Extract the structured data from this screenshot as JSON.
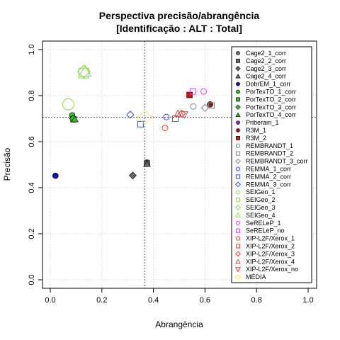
{
  "chart_data": {
    "type": "scatter",
    "title": "Perspectiva precisão/abrangência",
    "subtitle": "[Identificação : ALT : Total]",
    "xlabel": "Abrangência",
    "ylabel": "Precisão",
    "xlim": [
      0,
      1
    ],
    "ylim": [
      0,
      1
    ],
    "x_ticks": [
      "0.0",
      "0.2",
      "0.4",
      "0.6",
      "0.8",
      "1.0"
    ],
    "y_ticks": [
      "0.0",
      "0.2",
      "0.4",
      "0.6",
      "0.8",
      "1.0"
    ],
    "grid": true,
    "legend_position": "top-right",
    "reference_lines": {
      "x": 0.367,
      "y": 0.706
    },
    "series": [
      {
        "name": "Cage2_1_corr",
        "shape": "circle",
        "filled": true,
        "color": "#666666",
        "x": 0.375,
        "y": 0.51
      },
      {
        "name": "Cage2_2_corr",
        "shape": "square",
        "filled": true,
        "color": "#666666",
        "x": 0.375,
        "y": 0.505
      },
      {
        "name": "Cage2_3_corr",
        "shape": "diamond",
        "filled": true,
        "color": "#666666",
        "x": 0.32,
        "y": 0.453
      },
      {
        "name": "Cage2_4_corr",
        "shape": "triangle",
        "filled": true,
        "color": "#666666",
        "x": 0.375,
        "y": 0.503
      },
      {
        "name": "DobrEM_1_corr",
        "shape": "circle",
        "filled": true,
        "color": "#1010cc",
        "x": 0.02,
        "y": 0.452
      },
      {
        "name": "PorTexTO_1_corr",
        "shape": "circle",
        "filled": true,
        "color": "#33bb22",
        "x": 0.085,
        "y": 0.715
      },
      {
        "name": "PorTexTO_2_corr",
        "shape": "square",
        "filled": true,
        "color": "#33bb22",
        "x": 0.09,
        "y": 0.697
      },
      {
        "name": "PorTexTO_3_corr",
        "shape": "diamond",
        "filled": true,
        "color": "#33bb22",
        "x": 0.088,
        "y": 0.7
      },
      {
        "name": "PorTexTO_4_corr",
        "shape": "triangle",
        "filled": true,
        "color": "#33bb22",
        "x": 0.095,
        "y": 0.698
      },
      {
        "name": "Priberam_1",
        "shape": "circle",
        "filled": true,
        "color": "#9922cc",
        "x": null,
        "y": null
      },
      {
        "name": "R3M_1",
        "shape": "circle",
        "filled": true,
        "color": "#aa1111",
        "x": 0.62,
        "y": 0.762
      },
      {
        "name": "R3M_2",
        "shape": "square",
        "filled": true,
        "color": "#cc1111",
        "x": 0.54,
        "y": 0.803
      },
      {
        "name": "REMBRANDT_1",
        "shape": "circle",
        "filled": false,
        "color": "#888888",
        "x": 0.555,
        "y": 0.753
      },
      {
        "name": "REMBRANDT_2",
        "shape": "square",
        "filled": false,
        "color": "#888888",
        "x": 0.625,
        "y": 0.757
      },
      {
        "name": "REMBRANDT_3_corr",
        "shape": "diamond",
        "filled": false,
        "color": "#888888",
        "x": 0.6,
        "y": 0.747
      },
      {
        "name": "REMMA_1_corr",
        "shape": "circle",
        "filled": false,
        "color": "#3344dd",
        "x": 0.45,
        "y": 0.707
      },
      {
        "name": "REMMA_2_corr",
        "shape": "square",
        "filled": false,
        "color": "#3344dd",
        "x": 0.35,
        "y": 0.676
      },
      {
        "name": "REMMA_3_corr",
        "shape": "diamond",
        "filled": false,
        "color": "#3344dd",
        "x": 0.31,
        "y": 0.717
      },
      {
        "name": "SEIGeo_1",
        "shape": "circle",
        "filled": false,
        "color": "#88dd44",
        "x": 0.07,
        "y": 0.762
      },
      {
        "name": "SEIGeo_2",
        "shape": "square",
        "filled": false,
        "color": "#88dd44",
        "x": 0.13,
        "y": 0.898
      },
      {
        "name": "SEIGeo_3",
        "shape": "diamond",
        "filled": false,
        "color": "#88dd44",
        "x": 0.13,
        "y": 0.905
      },
      {
        "name": "SEIGeo_4",
        "shape": "triangle",
        "filled": false,
        "color": "#88dd44",
        "x": 0.135,
        "y": 0.905
      },
      {
        "name": "SeRELeP_1",
        "shape": "circle",
        "filled": false,
        "color": "#ee33ee",
        "x": 0.595,
        "y": 0.818
      },
      {
        "name": "SeRELeP_no",
        "shape": "square",
        "filled": false,
        "color": "#ee33ee",
        "x": 0.553,
        "y": 0.818
      },
      {
        "name": "XIP-L2F/Xerox_1",
        "shape": "circle",
        "filled": false,
        "color": "#ee3333",
        "x": 0.445,
        "y": 0.66
      },
      {
        "name": "XIP-L2F/Xerox_2",
        "shape": "square",
        "filled": false,
        "color": "#ee3333",
        "x": 0.485,
        "y": 0.7
      },
      {
        "name": "XIP-L2F/Xerox_3",
        "shape": "diamond",
        "filled": false,
        "color": "#ee3333",
        "x": 0.51,
        "y": 0.722
      },
      {
        "name": "XIP-L2F/Xerox_4",
        "shape": "triangle",
        "filled": false,
        "color": "#ee3333",
        "x": 0.495,
        "y": 0.722
      },
      {
        "name": "XIP-L2F/Xerox_no",
        "shape": "triangle-down",
        "filled": false,
        "color": "#ee3333",
        "x": 0.52,
        "y": 0.718
      },
      {
        "name": "MÉDIA",
        "shape": "diamond",
        "filled": false,
        "color": "#ffee33",
        "x": 0.367,
        "y": 0.706
      }
    ]
  }
}
